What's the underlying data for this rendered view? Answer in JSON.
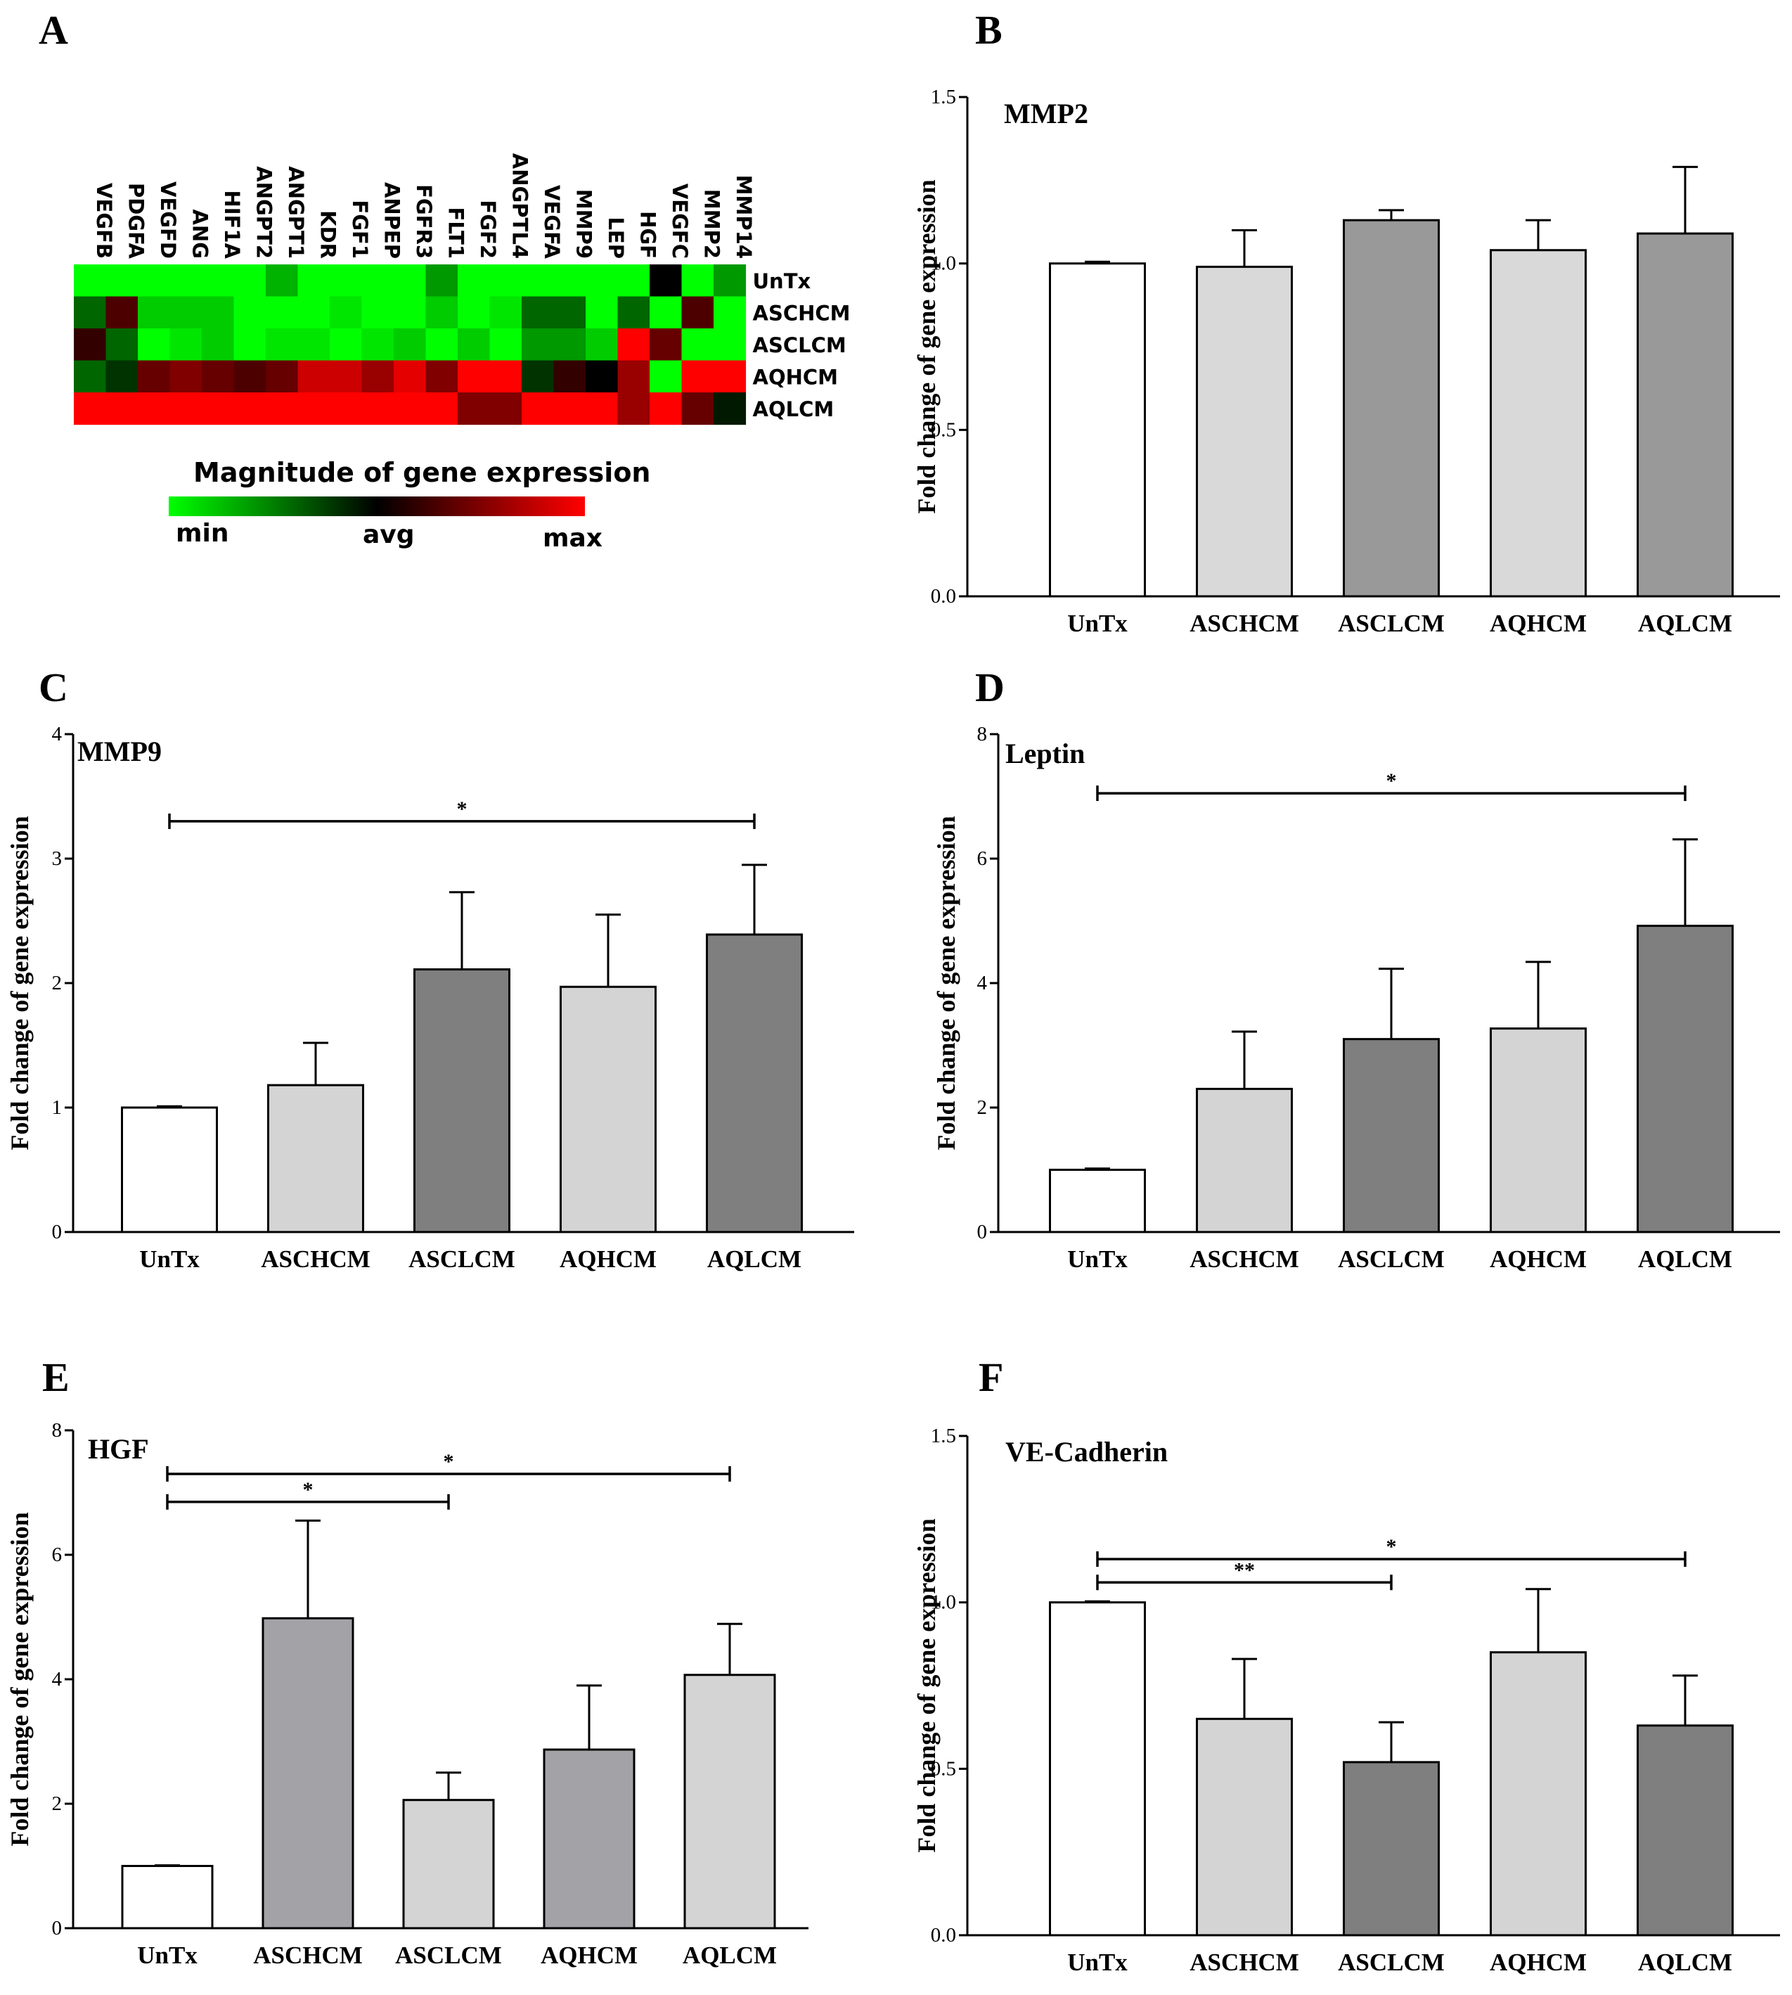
{
  "figure": {
    "panel_labels": [
      "A",
      "B",
      "C",
      "D",
      "E",
      "F"
    ]
  },
  "heatmap": {
    "genes": [
      "VEGFB",
      "PDGFA",
      "VEGFD",
      "ANG",
      "HIF1A",
      "ANGPT2",
      "ANGPT1",
      "KDR",
      "FGF1",
      "ANPEP",
      "FGFR3",
      "FLT1",
      "FGF2",
      "ANGPTL4",
      "VEGFA",
      "MMP9",
      "LEP",
      "HGF",
      "VEGFC",
      "MMP2",
      "MMP14"
    ],
    "rows": [
      "UnTx",
      "ASCHCM",
      "ASCLCM",
      "AQHCM",
      "AQLCM"
    ],
    "legend_title": "Magnitude  of gene expression",
    "legend_labels": {
      "min": "min",
      "avg": "avg",
      "max": "max"
    },
    "colors": {
      "min": "#00ff00",
      "avg": "#000000",
      "max": "#ff0000"
    },
    "values": [
      [
        0.0,
        0.0,
        0.0,
        0.0,
        0.0,
        0.0,
        0.15,
        0.0,
        0.0,
        0.0,
        0.0,
        0.2,
        0.0,
        0.0,
        0.0,
        0.0,
        0.0,
        0.0,
        0.5,
        0.0,
        0.2
      ],
      [
        0.3,
        0.65,
        0.1,
        0.1,
        0.1,
        0.0,
        0.0,
        0.0,
        0.05,
        0.0,
        0.0,
        0.1,
        0.0,
        0.05,
        0.3,
        0.3,
        0.0,
        0.3,
        0.0,
        0.65,
        0.0
      ],
      [
        0.6,
        0.3,
        0.0,
        0.05,
        0.1,
        0.0,
        0.05,
        0.05,
        0.0,
        0.05,
        0.1,
        0.0,
        0.1,
        0.0,
        0.2,
        0.2,
        0.1,
        1.0,
        0.7,
        0.0,
        0.0
      ],
      [
        0.3,
        0.4,
        0.7,
        0.75,
        0.7,
        0.65,
        0.7,
        0.9,
        0.9,
        0.8,
        0.95,
        0.75,
        1.0,
        1.0,
        0.4,
        0.6,
        0.5,
        0.8,
        0.0,
        1.0,
        1.0
      ],
      [
        1.0,
        1.0,
        1.0,
        1.0,
        1.0,
        1.0,
        1.0,
        1.0,
        1.0,
        1.0,
        1.0,
        1.0,
        0.75,
        0.75,
        1.0,
        1.0,
        1.0,
        0.8,
        1.0,
        0.7,
        0.45
      ]
    ]
  },
  "chart_data": [
    {
      "id": "B",
      "type": "bar",
      "title": "MMP2",
      "categories": [
        "UnTx",
        "ASCHCM",
        "ASCLCM",
        "AQHCM",
        "AQLCM"
      ],
      "values": [
        1.0,
        0.99,
        1.13,
        1.04,
        1.09
      ],
      "errors": [
        0.005,
        0.11,
        0.03,
        0.09,
        0.2
      ],
      "colors": [
        "#ffffff",
        "#d9d9d9",
        "#999999",
        "#d9d9d9",
        "#999999"
      ],
      "ylabel": "Fold change of gene expression",
      "ylim": [
        0,
        1.5
      ],
      "yticks": [
        "0.0",
        "0.5",
        "1.0",
        "1.5"
      ],
      "significance": []
    },
    {
      "id": "C",
      "type": "bar",
      "title": "MMP9",
      "categories": [
        "UnTx",
        "ASCHCM",
        "ASCLCM",
        "AQHCM",
        "AQLCM"
      ],
      "values": [
        1.0,
        1.18,
        2.11,
        1.97,
        2.39
      ],
      "errors": [
        0.01,
        0.34,
        0.62,
        0.58,
        0.56
      ],
      "colors": [
        "#ffffff",
        "#d4d4d4",
        "#7f7f7f",
        "#d4d4d4",
        "#7f7f7f"
      ],
      "ylabel": "Fold change of gene expression",
      "ylim": [
        0,
        4
      ],
      "yticks": [
        "0",
        "1",
        "2",
        "3",
        "4"
      ],
      "significance": [
        {
          "from": 0,
          "to": 4,
          "y": 3.3,
          "label": "*"
        }
      ]
    },
    {
      "id": "D",
      "type": "bar",
      "title": "Leptin",
      "categories": [
        "UnTx",
        "ASCHCM",
        "ASCLCM",
        "AQHCM",
        "AQLCM"
      ],
      "values": [
        1.0,
        2.3,
        3.1,
        3.27,
        4.92
      ],
      "errors": [
        0.02,
        0.92,
        1.13,
        1.07,
        1.39
      ],
      "colors": [
        "#ffffff",
        "#d4d4d4",
        "#7f7f7f",
        "#d4d4d4",
        "#7f7f7f"
      ],
      "ylabel": "Fold change of gene expression",
      "ylim": [
        0,
        8
      ],
      "yticks": [
        "0",
        "2",
        "4",
        "6",
        "8"
      ],
      "significance": [
        {
          "from": 0,
          "to": 4,
          "y": 7.05,
          "label": "*"
        }
      ]
    },
    {
      "id": "E",
      "type": "bar",
      "title": "HGF",
      "categories": [
        "UnTx",
        "ASCHCM",
        "ASCLCM",
        "AQHCM",
        "AQLCM"
      ],
      "values": [
        1.0,
        4.98,
        2.06,
        2.87,
        4.07
      ],
      "errors": [
        0.01,
        1.57,
        0.44,
        1.03,
        0.82
      ],
      "colors": [
        "#ffffff",
        "#a3a3a7",
        "#d4d4d4",
        "#a3a3a7",
        "#d4d4d4"
      ],
      "ylabel": "Fold change of gene expression",
      "ylim": [
        0,
        8
      ],
      "yticks": [
        "0",
        "2",
        "4",
        "6",
        "8"
      ],
      "significance": [
        {
          "from": 0,
          "to": 2,
          "y": 6.85,
          "label": "*"
        },
        {
          "from": 0,
          "to": 4,
          "y": 7.3,
          "label": "*"
        }
      ]
    },
    {
      "id": "F",
      "type": "bar",
      "title": "VE-Cadherin",
      "categories": [
        "UnTx",
        "ASCHCM",
        "ASCLCM",
        "AQHCM",
        "AQLCM"
      ],
      "values": [
        1.0,
        0.65,
        0.52,
        0.85,
        0.63
      ],
      "errors": [
        0.003,
        0.18,
        0.12,
        0.19,
        0.15
      ],
      "colors": [
        "#ffffff",
        "#d4d4d4",
        "#7f7f7f",
        "#d4d4d4",
        "#7f7f7f"
      ],
      "ylabel": "Fold change of gene expression",
      "ylim": [
        0,
        1.5
      ],
      "yticks": [
        "0.0",
        "0.5",
        "1.0",
        "1.5"
      ],
      "significance": [
        {
          "from": 0,
          "to": 2,
          "y": 1.06,
          "label": "**"
        },
        {
          "from": 0,
          "to": 4,
          "y": 1.13,
          "label": "*"
        }
      ]
    }
  ]
}
